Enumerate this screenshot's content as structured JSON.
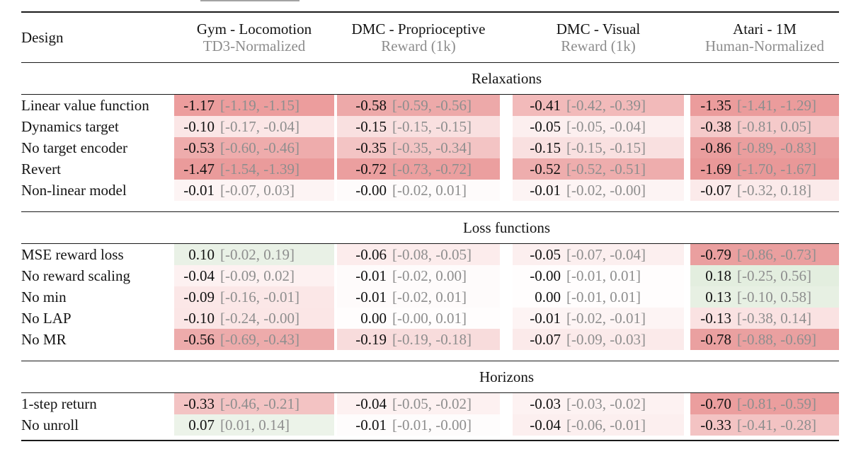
{
  "artifact_note": "cropped gray line fragment at very top of screenshot",
  "colors": {
    "rule": "#1a1a1a",
    "muted_text": "#8c8c8c",
    "value_text": "#111111",
    "page_bg": "#ffffff",
    "negative_max": "#ea9c9c",
    "positive_max": "#9cc49c"
  },
  "table": {
    "header": {
      "design_label": "Design",
      "columns": [
        {
          "title": "Gym - Locomotion",
          "subtitle": "TD3-Normalized"
        },
        {
          "title": "DMC - Proprioceptive",
          "subtitle": "Reward (1k)"
        },
        {
          "title": "DMC - Visual",
          "subtitle": "Reward (1k)"
        },
        {
          "title": "Atari - 1M",
          "subtitle": "Human-Normalized"
        }
      ]
    },
    "sections": [
      {
        "title": "Relaxations",
        "rows": [
          {
            "design": "Linear value function",
            "cells": [
              {
                "value": "-1.17",
                "ci": "[-1.19, -1.15]",
                "bg": "#ec9d9d"
              },
              {
                "value": "-0.58",
                "ci": "[-0.59, -0.56]",
                "bg": "#eda9a9"
              },
              {
                "value": "-0.41",
                "ci": "[-0.42, -0.39]",
                "bg": "#f2baba"
              },
              {
                "value": "-1.35",
                "ci": "[-1.41, -1.29]",
                "bg": "#eb9c9c"
              }
            ]
          },
          {
            "design": "Dynamics target",
            "cells": [
              {
                "value": "-0.10",
                "ci": "[-0.17, -0.04]",
                "bg": "#fbe6e6"
              },
              {
                "value": "-0.15",
                "ci": "[-0.15, -0.15]",
                "bg": "#f9e0e0"
              },
              {
                "value": "-0.05",
                "ci": "[-0.05, -0.04]",
                "bg": "#fcefef"
              },
              {
                "value": "-0.38",
                "ci": "[-0.81, 0.05]",
                "bg": "#f5caca"
              }
            ]
          },
          {
            "design": "No target encoder",
            "cells": [
              {
                "value": "-0.53",
                "ci": "[-0.60, -0.46]",
                "bg": "#eeacac"
              },
              {
                "value": "-0.35",
                "ci": "[-0.35, -0.34]",
                "bg": "#f3c4c4"
              },
              {
                "value": "-0.15",
                "ci": "[-0.15, -0.15]",
                "bg": "#f9e0e0"
              },
              {
                "value": "-0.86",
                "ci": "[-0.89, -0.83]",
                "bg": "#ea9e9e"
              }
            ]
          },
          {
            "design": "Revert",
            "cells": [
              {
                "value": "-1.47",
                "ci": "[-1.54, -1.39]",
                "bg": "#ea9b9b"
              },
              {
                "value": "-0.72",
                "ci": "[-0.73, -0.72]",
                "bg": "#eb9f9f"
              },
              {
                "value": "-0.52",
                "ci": "[-0.52, -0.51]",
                "bg": "#eeadad"
              },
              {
                "value": "-1.69",
                "ci": "[-1.70, -1.67]",
                "bg": "#e99898"
              }
            ]
          },
          {
            "design": "Non-linear model",
            "cells": [
              {
                "value": "-0.01",
                "ci": "[-0.07, 0.03]",
                "bg": "#fdf4f4"
              },
              {
                "value": "-0.00",
                "ci": "[-0.02, 0.01]",
                "bg": "#fefbfb"
              },
              {
                "value": "-0.01",
                "ci": "[-0.02, -0.00]",
                "bg": "#fdf4f4"
              },
              {
                "value": "-0.07",
                "ci": "[-0.32, 0.18]",
                "bg": "#fbeaea"
              }
            ]
          }
        ]
      },
      {
        "title": "Loss functions",
        "rows": [
          {
            "design": "MSE reward loss",
            "cells": [
              {
                "value": "0.10",
                "ci": "[-0.02, 0.19]",
                "bg": "#e9f1e6"
              },
              {
                "value": "-0.06",
                "ci": "[-0.08, -0.05]",
                "bg": "#fcecec"
              },
              {
                "value": "-0.05",
                "ci": "[-0.07, -0.04]",
                "bg": "#fcefef"
              },
              {
                "value": "-0.79",
                "ci": "[-0.86, -0.73]",
                "bg": "#ea9f9f"
              }
            ]
          },
          {
            "design": "No reward scaling",
            "cells": [
              {
                "value": "-0.04",
                "ci": "[-0.09, 0.02]",
                "bg": "#fdf1f1"
              },
              {
                "value": "-0.01",
                "ci": "[-0.02, 0.00]",
                "bg": "#fefbfb"
              },
              {
                "value": "-0.00",
                "ci": "[-0.01, 0.01]",
                "bg": "#fffdfd"
              },
              {
                "value": "0.18",
                "ci": "[-0.25, 0.56]",
                "bg": "#e3eedf"
              }
            ]
          },
          {
            "design": "No min",
            "cells": [
              {
                "value": "-0.09",
                "ci": "[-0.16, -0.01]",
                "bg": "#fbe7e7"
              },
              {
                "value": "-0.01",
                "ci": "[-0.02, 0.01]",
                "bg": "#fefbfb"
              },
              {
                "value": "0.00",
                "ci": "[-0.01, 0.01]",
                "bg": "#fffdfd"
              },
              {
                "value": "0.13",
                "ci": "[-0.10, 0.58]",
                "bg": "#e7f0e3"
              }
            ]
          },
          {
            "design": "No LAP",
            "cells": [
              {
                "value": "-0.10",
                "ci": "[-0.24, -0.00]",
                "bg": "#fbe6e6"
              },
              {
                "value": "0.00",
                "ci": "[-0.00, 0.01]",
                "bg": "#fffdfd"
              },
              {
                "value": "-0.01",
                "ci": "[-0.02, -0.01]",
                "bg": "#fdf4f4"
              },
              {
                "value": "-0.13",
                "ci": "[-0.38, 0.14]",
                "bg": "#fae2e2"
              }
            ]
          },
          {
            "design": "No MR",
            "cells": [
              {
                "value": "-0.56",
                "ci": "[-0.69, -0.43]",
                "bg": "#edabab"
              },
              {
                "value": "-0.19",
                "ci": "[-0.19, -0.18]",
                "bg": "#f8dcdc"
              },
              {
                "value": "-0.07",
                "ci": "[-0.09, -0.03]",
                "bg": "#fbeaea"
              },
              {
                "value": "-0.78",
                "ci": "[-0.88, -0.69]",
                "bg": "#eaa0a0"
              }
            ]
          }
        ]
      },
      {
        "title": "Horizons",
        "rows": [
          {
            "design": "1-step return",
            "cells": [
              {
                "value": "-0.33",
                "ci": "[-0.46, -0.21]",
                "bg": "#f3c3c3"
              },
              {
                "value": "-0.04",
                "ci": "[-0.05, -0.02]",
                "bg": "#fdf1f1"
              },
              {
                "value": "-0.03",
                "ci": "[-0.03, -0.02]",
                "bg": "#fdf2f2"
              },
              {
                "value": "-0.70",
                "ci": "[-0.81, -0.59]",
                "bg": "#eb9e9e"
              }
            ]
          },
          {
            "design": "No unroll",
            "cells": [
              {
                "value": "0.07",
                "ci": "[0.01, 0.14]",
                "bg": "#ecf3e9"
              },
              {
                "value": "-0.01",
                "ci": "[-0.01, -0.00]",
                "bg": "#fefcfc"
              },
              {
                "value": "-0.04",
                "ci": "[-0.06, -0.01]",
                "bg": "#fcefef"
              },
              {
                "value": "-0.33",
                "ci": "[-0.41, -0.28]",
                "bg": "#f3c3c3"
              }
            ]
          }
        ]
      }
    ]
  }
}
